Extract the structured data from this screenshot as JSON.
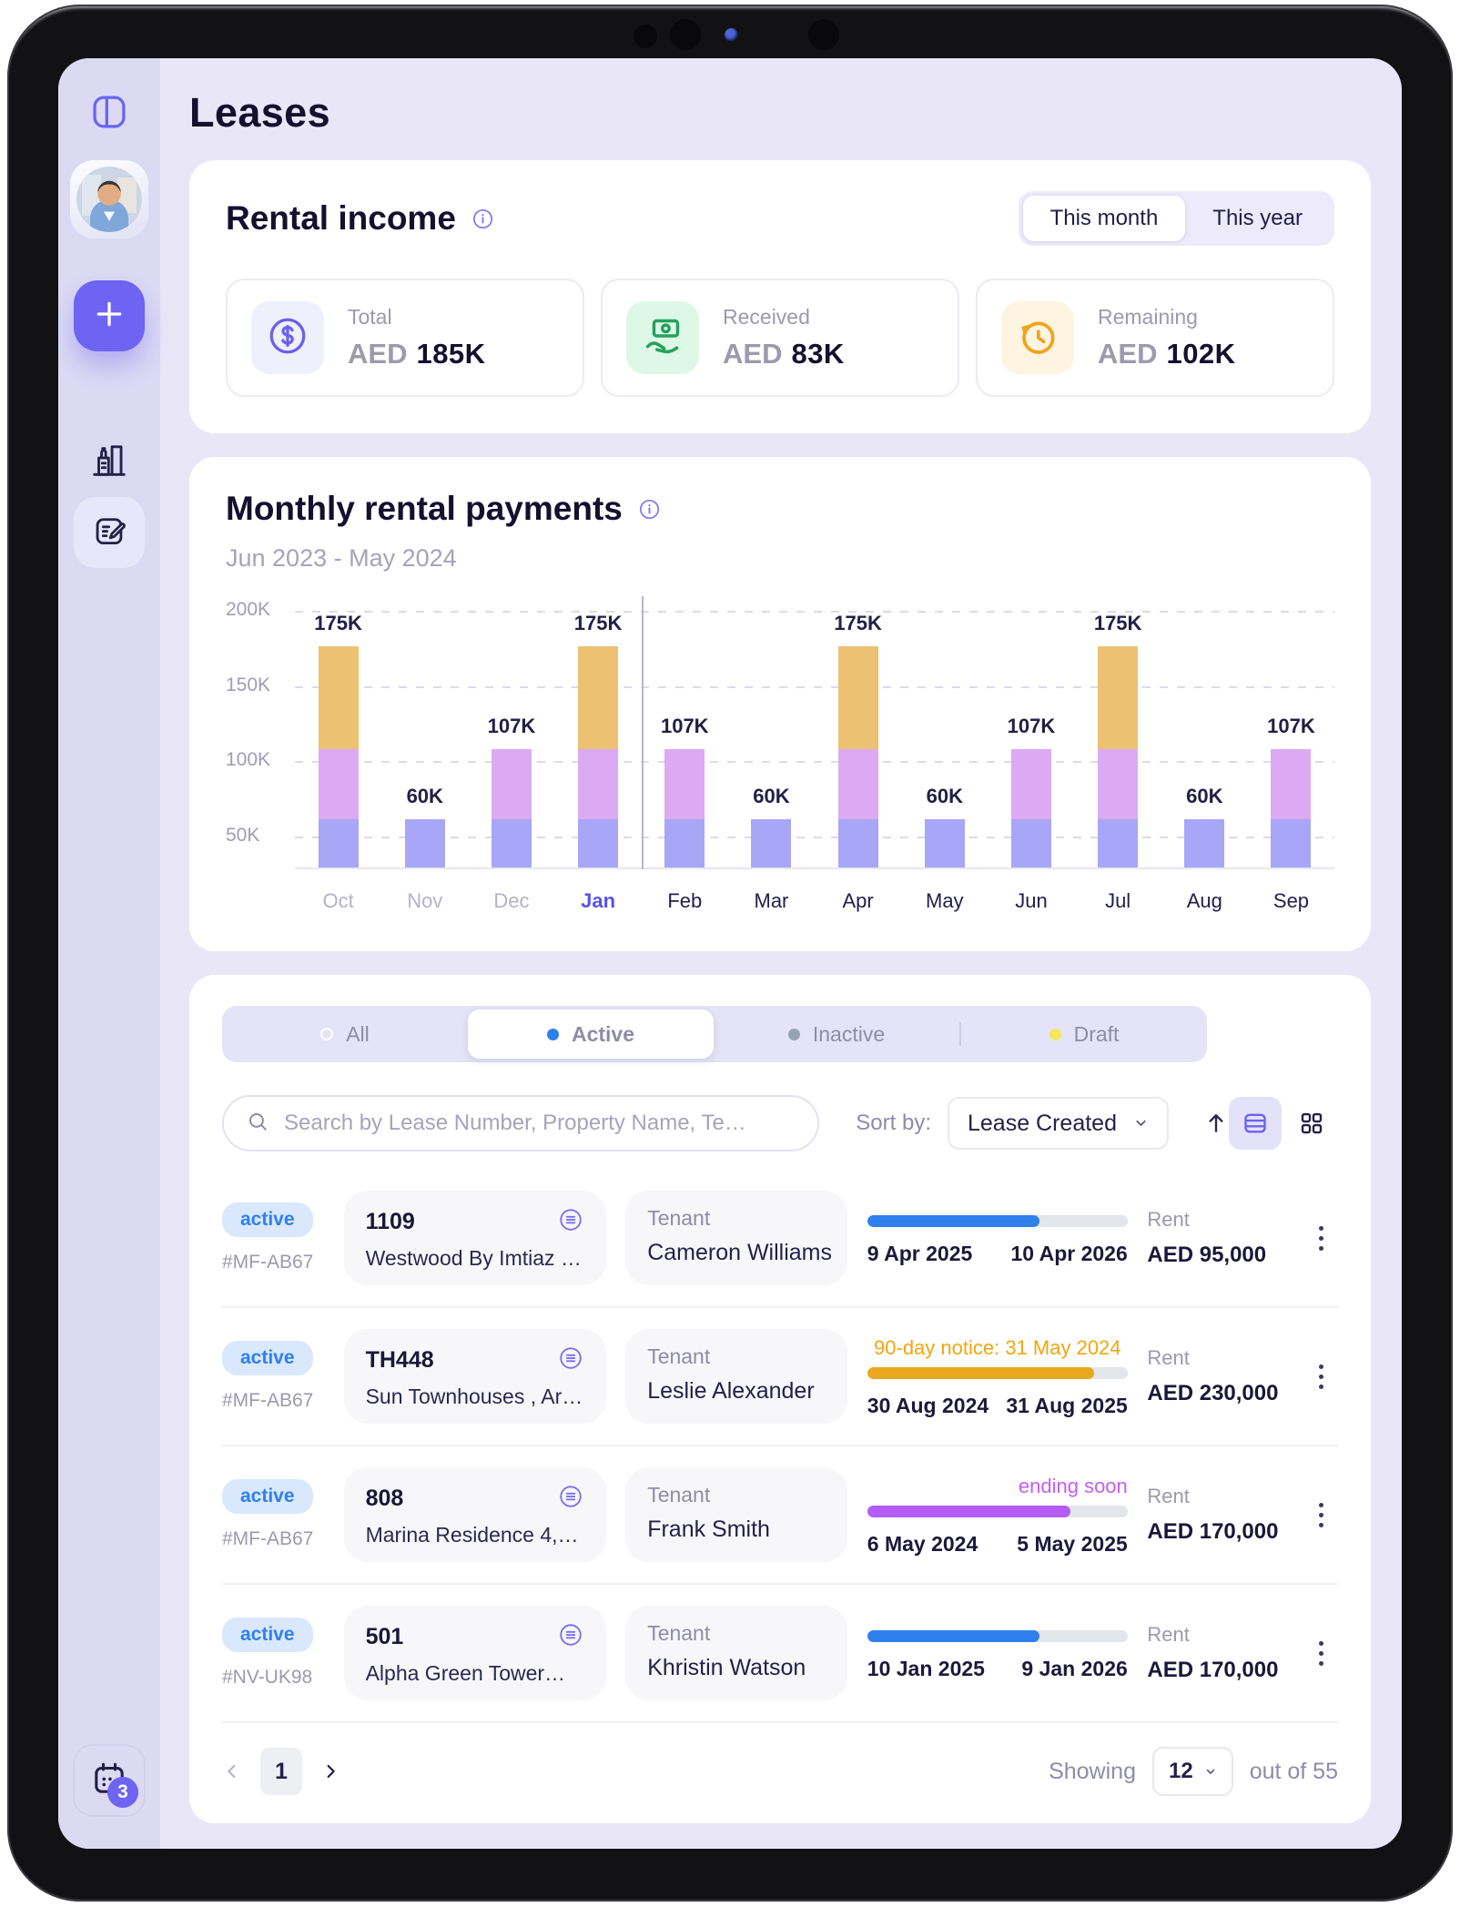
{
  "page_title": "Leases",
  "sidebar": {
    "badge_count": "3"
  },
  "income": {
    "title": "Rental income",
    "toggle": {
      "options": [
        {
          "label": "This month",
          "selected": true
        },
        {
          "label": "This year",
          "selected": false
        }
      ]
    },
    "stats": [
      {
        "label": "Total",
        "currency": "AED",
        "value": "185K",
        "icon": "dollar-circle-icon",
        "tile_bg": "#eef0fc"
      },
      {
        "label": "Received",
        "currency": "AED",
        "value": "83K",
        "icon": "money-hand-icon",
        "tile_bg": "#def8e8"
      },
      {
        "label": "Remaining",
        "currency": "AED",
        "value": "102K",
        "icon": "history-clock-icon",
        "tile_bg": "#fdf4e1"
      }
    ]
  },
  "chart_data": {
    "type": "bar",
    "stacked": true,
    "title": "Monthly rental payments",
    "subtitle": "Jun 2023 - May 2024",
    "categories": [
      "Oct",
      "Nov",
      "Dec",
      "Jan",
      "Feb",
      "Mar",
      "Apr",
      "May",
      "Jun",
      "Jul",
      "Aug",
      "Sep"
    ],
    "series": [
      {
        "name": "segment-bottom",
        "color": "#a8a6f7",
        "values": [
          60,
          60,
          60,
          60,
          60,
          60,
          60,
          60,
          60,
          60,
          60,
          60
        ]
      },
      {
        "name": "segment-middle",
        "color": "#dcaaf2",
        "values": [
          47,
          0,
          47,
          47,
          47,
          0,
          47,
          0,
          47,
          47,
          0,
          47
        ]
      },
      {
        "name": "segment-top",
        "color": "#ecc172",
        "values": [
          68,
          0,
          0,
          68,
          0,
          0,
          68,
          0,
          0,
          68,
          0,
          0
        ]
      }
    ],
    "totals_labels": [
      "175K",
      "60K",
      "107K",
      "175K",
      "107K",
      "60K",
      "175K",
      "60K",
      "107K",
      "175K",
      "60K",
      "107K"
    ],
    "y_ticks": [
      "200K",
      "150K",
      "100K",
      "50K"
    ],
    "y_max": 200,
    "y_tick_step": 50,
    "grid": "dashed-horizontal",
    "x_highlight": "Jan",
    "x_muted": [
      "Oct",
      "Nov",
      "Dec"
    ],
    "divider_after_index": 3
  },
  "list": {
    "tabs": [
      {
        "label": "All",
        "dot_style": "ring"
      },
      {
        "label": "Active",
        "dot_color": "#2f80ed",
        "selected": true
      },
      {
        "label": "Inactive",
        "dot_color": "#98a2b3"
      },
      {
        "label": "Draft",
        "dot_color": "#f6e75e"
      }
    ],
    "search": {
      "placeholder": "Search by Lease Number, Property Name, Te…"
    },
    "sort": {
      "label": "Sort by:",
      "value": "Lease Created"
    },
    "rows": [
      {
        "status": "active",
        "lease_ref": "#MF-AB67",
        "unit": "1109",
        "property": "Westwood By Imtiaz ,…",
        "tenant_label": "Tenant",
        "tenant": "Cameron Williams",
        "notice": "",
        "notice_color": "",
        "notice_align": "center",
        "progress_pct": 66,
        "bar_color": "#2f80ed",
        "date_start": "9 Apr 2025",
        "date_end": "10 Apr 2026",
        "rent_label": "Rent",
        "rent_value": "AED 95,000"
      },
      {
        "status": "active",
        "lease_ref": "#MF-AB67",
        "unit": "TH448",
        "property": "Sun Townhouses , Ara…",
        "tenant_label": "Tenant",
        "tenant": "Leslie Alexander",
        "notice": "90-day notice: 31 May 2024",
        "notice_color": "#f2a60f",
        "notice_align": "center",
        "progress_pct": 87,
        "bar_color": "#e9a81d",
        "date_start": "30 Aug 2024",
        "date_end": "31 Aug 2025",
        "rent_label": "Rent",
        "rent_value": "AED 230,000"
      },
      {
        "status": "active",
        "lease_ref": "#MF-AB67",
        "unit": "808",
        "property": "Marina Residence 4,…",
        "tenant_label": "Tenant",
        "tenant": "Frank Smith",
        "notice": "ending soon",
        "notice_color": "#c45ef5",
        "notice_align": "right",
        "progress_pct": 78,
        "bar_color": "#b45cf6",
        "date_start": "6 May 2024",
        "date_end": "5 May 2025",
        "rent_label": "Rent",
        "rent_value": "AED 170,000"
      },
      {
        "status": "active",
        "lease_ref": "#NV-UK98",
        "unit": "501",
        "property": "Alpha Green Tower…",
        "tenant_label": "Tenant",
        "tenant": "Khristin Watson",
        "notice": "",
        "notice_color": "",
        "notice_align": "center",
        "progress_pct": 66,
        "bar_color": "#2f80ed",
        "date_start": "10 Jan 2025",
        "date_end": "9 Jan 2026",
        "rent_label": "Rent",
        "rent_value": "AED 170,000"
      }
    ],
    "pagination": {
      "page": "1",
      "showing_label": "Showing",
      "page_size": "12",
      "total_label": "out of 55"
    }
  }
}
